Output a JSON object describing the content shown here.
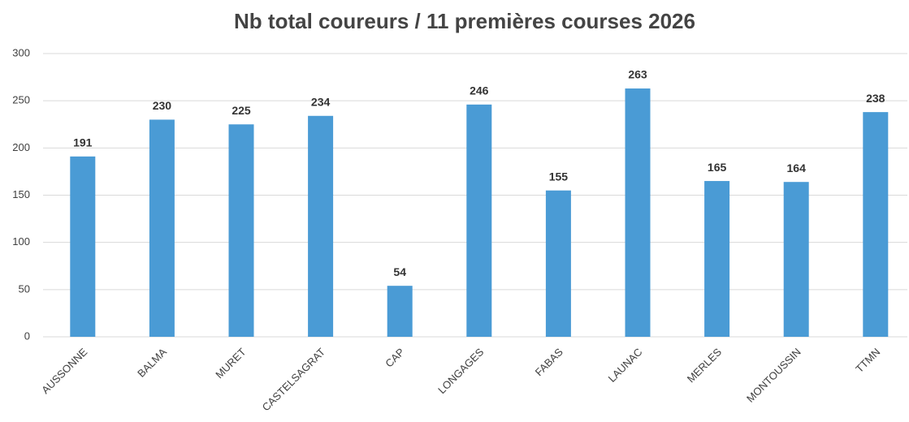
{
  "chart_data": {
    "type": "bar",
    "title": "Nb total coureurs / 11 premières courses 2026",
    "categories": [
      "AUSSONNE",
      "BALMA",
      "MURET",
      "CASTELSAGRAT",
      "CAP",
      "LONGAGES",
      "FABAS",
      "LAUNAC",
      "MERLES",
      "MONTOUSSIN",
      "TTMN"
    ],
    "values": [
      191,
      230,
      225,
      234,
      54,
      246,
      155,
      263,
      165,
      164,
      238
    ],
    "color": "#4a9bd5",
    "ylim": [
      0,
      300
    ],
    "yticks": [
      0,
      50,
      100,
      150,
      200,
      250,
      300
    ],
    "grid": true
  }
}
